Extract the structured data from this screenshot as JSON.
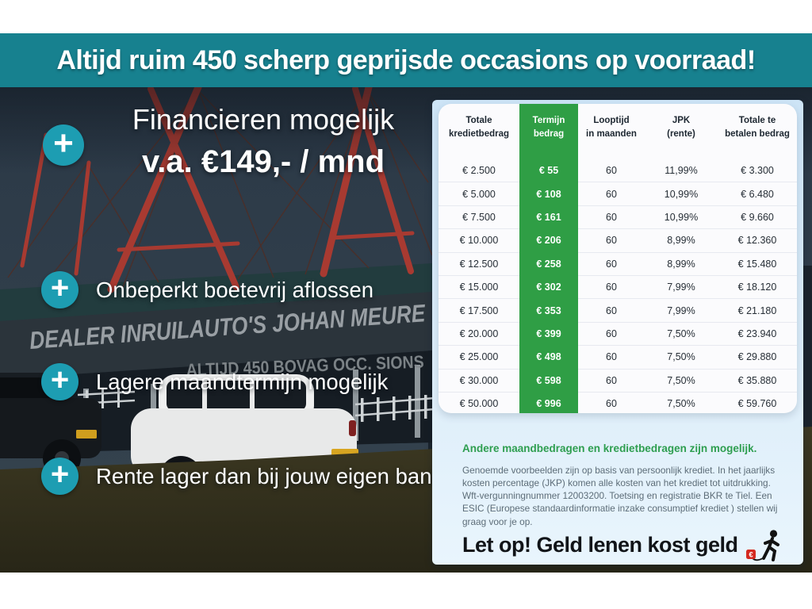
{
  "banner": {
    "text": "Altijd ruim 450 scherp geprijsde occasions op voorraad!"
  },
  "promo": {
    "headline_line1": "Financieren mogelijk",
    "headline_line2": "v.a. €149,- / mnd",
    "bullets": [
      "Onbeperkt boetevrij aflossen",
      "Lagere maandtermijn mogelijk",
      "Rente lager dan bij jouw eigen bank"
    ]
  },
  "photo": {
    "sign_text": "DEALER INRUILAUTO'S JOHAN MEURE",
    "building_text": "ALTIJD 450 BOVAG OCC. SIONS"
  },
  "table": {
    "headers": [
      [
        "Totale",
        "kredietbedrag"
      ],
      [
        "Termijn",
        "bedrag"
      ],
      [
        "Looptijd",
        "in maanden"
      ],
      [
        "JPK",
        "(rente)"
      ],
      [
        "Totale te",
        "betalen bedrag"
      ]
    ],
    "rows": [
      [
        "€ 2.500",
        "€ 55",
        "60",
        "11,99%",
        "€ 3.300"
      ],
      [
        "€ 5.000",
        "€ 108",
        "60",
        "10,99%",
        "€ 6.480"
      ],
      [
        "€ 7.500",
        "€ 161",
        "60",
        "10,99%",
        "€ 9.660"
      ],
      [
        "€ 10.000",
        "€ 206",
        "60",
        "8,99%",
        "€ 12.360"
      ],
      [
        "€ 12.500",
        "€ 258",
        "60",
        "8,99%",
        "€ 15.480"
      ],
      [
        "€ 15.000",
        "€ 302",
        "60",
        "7,99%",
        "€ 18.120"
      ],
      [
        "€ 17.500",
        "€ 353",
        "60",
        "7,99%",
        "€ 21.180"
      ],
      [
        "€ 20.000",
        "€ 399",
        "60",
        "7,50%",
        "€ 23.940"
      ],
      [
        "€ 25.000",
        "€ 498",
        "60",
        "7,50%",
        "€ 29.880"
      ],
      [
        "€ 30.000",
        "€ 598",
        "60",
        "7,50%",
        "€ 35.880"
      ],
      [
        "€ 50.000",
        "€ 996",
        "60",
        "7,50%",
        "€ 59.760"
      ]
    ]
  },
  "footer": {
    "highlight": "Andere maandbedragen en kredietbedragen zijn mogelijk.",
    "disclaimer": "Genoemde voorbeelden zijn op basis van persoonlijk krediet. In het jaarlijks kosten percentage (JKP) komen alle kosten van het krediet tot uitdrukking. Wft-vergunningnummer 12003200. Toetsing en registratie BKR te Tiel. Een ESIC (Europese standaardinformatie inzake consumptief krediet ) stellen wij graag voor je op.",
    "warning": "Let op! Geld lenen kost geld",
    "euro_symbol": "€"
  },
  "colors": {
    "banner_teal": "#17818f",
    "plus_teal": "#1d9db2",
    "table_green": "#2f9e45",
    "highlight_green": "#2e9e50",
    "panel_blue": "#cde4f6",
    "warning_red": "#d42a20"
  }
}
